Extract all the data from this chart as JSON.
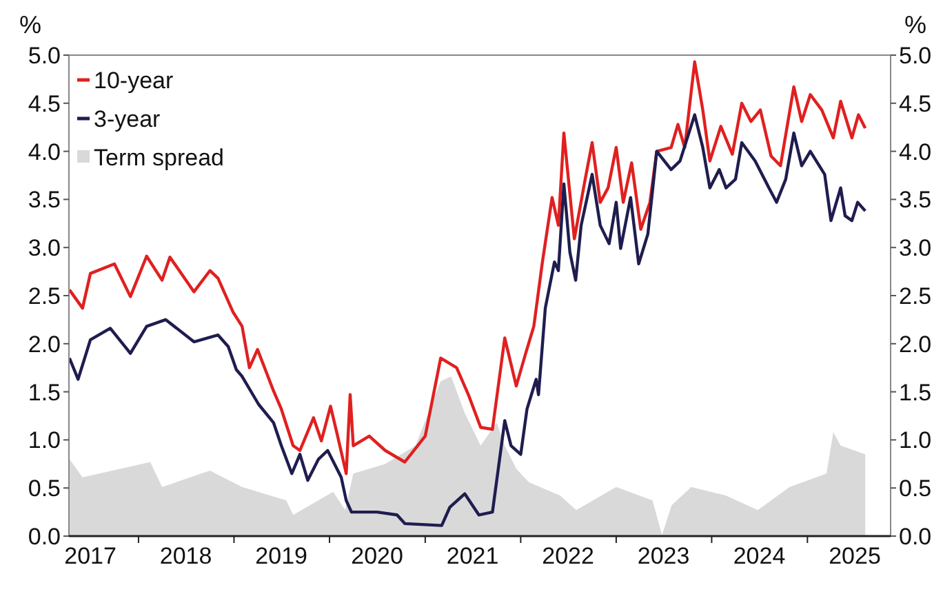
{
  "chart_data": {
    "type": "line",
    "ylabel": "%",
    "y2label": "%",
    "legend": "top left",
    "grid": false,
    "xlim": [
      "2017-04-10",
      "2025-11-15"
    ],
    "xticks": [
      {
        "value": "2017-07-01",
        "label": "2017"
      },
      {
        "value": "2018-01-01",
        "label": null
      },
      {
        "value": "2018-07-01",
        "label": "2018"
      },
      {
        "value": "2019-01-01",
        "label": null
      },
      {
        "value": "2019-07-01",
        "label": "2019"
      },
      {
        "value": "2020-01-01",
        "label": null
      },
      {
        "value": "2020-07-01",
        "label": "2020"
      },
      {
        "value": "2021-01-01",
        "label": null
      },
      {
        "value": "2021-07-01",
        "label": "2021"
      },
      {
        "value": "2022-01-01",
        "label": null
      },
      {
        "value": "2022-07-01",
        "label": "2022"
      },
      {
        "value": "2023-01-01",
        "label": null
      },
      {
        "value": "2023-07-01",
        "label": "2023"
      },
      {
        "value": "2024-01-01",
        "label": null
      },
      {
        "value": "2024-07-01",
        "label": "2024"
      },
      {
        "value": "2025-01-01",
        "label": null
      },
      {
        "value": "2025-07-01",
        "label": "2025"
      }
    ],
    "ylim": [
      0,
      5
    ],
    "yticks": [
      {
        "value": 0,
        "label": "0.0"
      },
      0.5,
      {
        "value": 1,
        "label": "1.0"
      },
      1.5,
      {
        "value": 2,
        "label": "2.0"
      },
      2.5,
      {
        "value": 3,
        "label": "3.0"
      },
      3.5,
      {
        "value": 4,
        "label": "4.0"
      },
      4.5,
      {
        "value": 5,
        "label": "5.0"
      }
    ],
    "y2lim": [
      0,
      5
    ],
    "y2ticks": [
      {
        "value": 0,
        "label": "0.0"
      },
      0.5,
      {
        "value": 1,
        "label": "1.0"
      },
      1.5,
      {
        "value": 2,
        "label": "2.0"
      },
      2.5,
      {
        "value": 3,
        "label": "3.0"
      },
      3.5,
      {
        "value": 4,
        "label": "4.0"
      },
      4.5,
      {
        "value": 5,
        "label": "5.0"
      }
    ],
    "series": [
      {
        "name": "Term spread",
        "type": "area",
        "color": "#d9d9d9",
        "x": [
          "2017-04-12",
          "2017-06-01",
          "2018-02-15",
          "2018-04-01",
          "2018-10-01",
          "2019-02-01",
          "2019-07-20",
          "2019-08-15",
          "2020-01-15",
          "2020-03-01",
          "2020-04-01",
          "2020-08-01",
          "2020-11-25",
          "2021-03-01",
          "2021-04-10",
          "2021-06-01",
          "2021-08-01",
          "2021-10-01",
          "2021-11-01",
          "2021-12-15",
          "2022-02-01",
          "2022-06-01",
          "2022-08-01",
          "2023-01-01",
          "2023-05-20",
          "2023-06-25",
          "2023-08-01",
          "2023-10-15",
          "2024-02-25",
          "2024-06-25",
          "2024-10-25",
          "2025-03-15",
          "2025-04-10",
          "2025-05-08",
          "2025-08-10"
        ],
        "values": [
          0.8,
          0.61,
          0.77,
          0.51,
          0.68,
          0.51,
          0.37,
          0.22,
          0.46,
          0.27,
          0.65,
          0.75,
          0.94,
          1.61,
          1.66,
          1.28,
          0.94,
          1.18,
          0.94,
          0.7,
          0.56,
          0.42,
          0.27,
          0.51,
          0.37,
          0.01,
          0.32,
          0.51,
          0.42,
          0.27,
          0.51,
          0.65,
          1.08,
          0.94,
          0.85
        ]
      },
      {
        "name": "10-year",
        "color": "#e02020",
        "x": [
          "2017-04-12",
          "2017-06-01",
          "2017-07-01",
          "2017-10-01",
          "2017-12-01",
          "2018-02-01",
          "2018-04-01",
          "2018-05-01",
          "2018-08-01",
          "2018-10-01",
          "2018-11-01",
          "2018-12-28",
          "2019-02-01",
          "2019-03-01",
          "2019-04-01",
          "2019-06-01",
          "2019-07-01",
          "2019-08-15",
          "2019-09-10",
          "2019-11-01",
          "2019-12-01",
          "2020-01-05",
          "2020-02-01",
          "2020-03-05",
          "2020-03-20",
          "2020-04-01",
          "2020-06-01",
          "2020-08-01",
          "2020-10-15",
          "2021-01-01",
          "2021-03-01",
          "2021-05-01",
          "2021-06-15",
          "2021-08-01",
          "2021-09-15",
          "2021-11-01",
          "2021-12-15",
          "2022-01-20",
          "2022-02-20",
          "2022-03-25",
          "2022-05-01",
          "2022-05-25",
          "2022-06-15",
          "2022-07-25",
          "2022-09-01",
          "2022-10-01",
          "2022-11-01",
          "2022-12-01",
          "2023-01-01",
          "2023-01-28",
          "2023-03-01",
          "2023-04-05",
          "2023-05-10",
          "2023-06-05",
          "2023-07-30",
          "2023-08-25",
          "2023-09-20",
          "2023-10-28",
          "2023-11-28",
          "2023-12-25",
          "2024-02-05",
          "2024-03-20",
          "2024-04-25",
          "2024-05-30",
          "2024-07-05",
          "2024-08-15",
          "2024-09-20",
          "2024-11-10",
          "2024-12-10",
          "2025-01-12",
          "2025-02-25",
          "2025-04-10",
          "2025-05-08",
          "2025-06-20",
          "2025-07-15",
          "2025-08-10"
        ],
        "values": [
          2.56,
          2.37,
          2.73,
          2.83,
          2.49,
          2.91,
          2.66,
          2.9,
          2.54,
          2.76,
          2.68,
          2.33,
          2.18,
          1.75,
          1.94,
          1.51,
          1.32,
          0.94,
          0.89,
          1.23,
          0.99,
          1.35,
          1.04,
          0.65,
          1.47,
          0.94,
          1.04,
          0.89,
          0.77,
          1.04,
          1.85,
          1.75,
          1.47,
          1.13,
          1.11,
          2.06,
          1.56,
          1.9,
          2.18,
          2.85,
          3.52,
          3.23,
          4.19,
          3.09,
          3.66,
          4.09,
          3.47,
          3.62,
          4.04,
          3.47,
          3.88,
          3.19,
          3.47,
          4.0,
          4.04,
          4.28,
          4.04,
          4.93,
          4.43,
          3.9,
          4.26,
          3.97,
          4.5,
          4.31,
          4.43,
          3.95,
          3.85,
          4.67,
          4.31,
          4.59,
          4.43,
          4.14,
          4.52,
          4.14,
          4.38,
          4.24
        ]
      },
      {
        "name": "3-year",
        "color": "#1f1d4f",
        "x": [
          "2017-04-12",
          "2017-05-15",
          "2017-07-01",
          "2017-09-15",
          "2017-12-01",
          "2018-02-01",
          "2018-04-15",
          "2018-08-01",
          "2018-11-01",
          "2018-12-10",
          "2019-01-10",
          "2019-02-01",
          "2019-04-05",
          "2019-06-01",
          "2019-07-01",
          "2019-08-10",
          "2019-09-10",
          "2019-10-10",
          "2019-11-20",
          "2019-12-25",
          "2020-02-15",
          "2020-03-05",
          "2020-03-25",
          "2020-07-01",
          "2020-09-15",
          "2020-10-15",
          "2021-03-05",
          "2021-04-05",
          "2021-06-01",
          "2021-07-25",
          "2021-09-15",
          "2021-11-01",
          "2021-11-25",
          "2022-01-01",
          "2022-01-25",
          "2022-03-01",
          "2022-03-10",
          "2022-04-05",
          "2022-05-10",
          "2022-05-25",
          "2022-06-15",
          "2022-07-08",
          "2022-07-30",
          "2022-08-20",
          "2022-10-01",
          "2022-11-01",
          "2022-12-05",
          "2023-01-01",
          "2023-01-18",
          "2023-02-25",
          "2023-03-28",
          "2023-05-02",
          "2023-06-05",
          "2023-07-30",
          "2023-09-02",
          "2023-10-28",
          "2023-11-28",
          "2023-12-25",
          "2024-01-30",
          "2024-02-25",
          "2024-04-01",
          "2024-04-25",
          "2024-06-15",
          "2024-08-07",
          "2024-09-05",
          "2024-10-10",
          "2024-11-10",
          "2024-12-10",
          "2025-01-12",
          "2025-03-08",
          "2025-04-01",
          "2025-05-08",
          "2025-05-25",
          "2025-06-20",
          "2025-07-12",
          "2025-08-10"
        ],
        "values": [
          1.85,
          1.63,
          2.04,
          2.16,
          1.9,
          2.18,
          2.25,
          2.02,
          2.09,
          1.97,
          1.73,
          1.66,
          1.37,
          1.18,
          0.94,
          0.65,
          0.85,
          0.58,
          0.8,
          0.89,
          0.61,
          0.37,
          0.25,
          0.25,
          0.22,
          0.13,
          0.11,
          0.3,
          0.44,
          0.22,
          0.25,
          1.2,
          0.94,
          0.85,
          1.32,
          1.63,
          1.47,
          2.37,
          2.85,
          2.76,
          3.66,
          2.95,
          2.66,
          3.23,
          3.76,
          3.23,
          3.04,
          3.47,
          2.99,
          3.52,
          2.83,
          3.14,
          4.0,
          3.81,
          3.9,
          4.38,
          4.04,
          3.62,
          3.81,
          3.62,
          3.71,
          4.09,
          3.9,
          3.62,
          3.47,
          3.71,
          4.19,
          3.85,
          4.0,
          3.76,
          3.28,
          3.62,
          3.33,
          3.28,
          3.47,
          3.38
        ]
      }
    ]
  }
}
